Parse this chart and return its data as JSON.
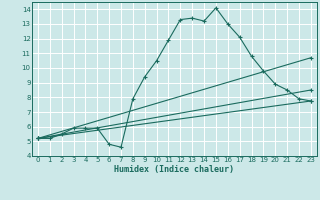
{
  "xlabel": "Humidex (Indice chaleur)",
  "background_color": "#cce8e8",
  "grid_color": "#ffffff",
  "line_color": "#1a6b5e",
  "xlim": [
    -0.5,
    23.5
  ],
  "ylim": [
    4,
    14.5
  ],
  "xticks": [
    0,
    1,
    2,
    3,
    4,
    5,
    6,
    7,
    8,
    9,
    10,
    11,
    12,
    13,
    14,
    15,
    16,
    17,
    18,
    19,
    20,
    21,
    22,
    23
  ],
  "yticks": [
    4,
    5,
    6,
    7,
    8,
    9,
    10,
    11,
    12,
    13,
    14
  ],
  "line1_x": [
    0,
    1,
    2,
    3,
    4,
    5,
    6,
    7,
    8,
    9,
    10,
    11,
    12,
    13,
    14,
    15,
    16,
    17,
    18,
    19,
    20,
    21,
    22,
    23
  ],
  "line1_y": [
    5.2,
    5.2,
    5.5,
    5.9,
    5.9,
    5.9,
    4.8,
    4.6,
    7.9,
    9.4,
    10.5,
    11.9,
    13.3,
    13.4,
    13.2,
    14.1,
    13.0,
    12.1,
    10.8,
    9.8,
    8.9,
    8.5,
    7.9,
    7.75
  ],
  "line2_x": [
    0,
    23
  ],
  "line2_y": [
    5.2,
    7.75
  ],
  "line3_x": [
    0,
    23
  ],
  "line3_y": [
    5.2,
    8.5
  ],
  "line4_x": [
    0,
    23
  ],
  "line4_y": [
    5.2,
    10.7
  ]
}
